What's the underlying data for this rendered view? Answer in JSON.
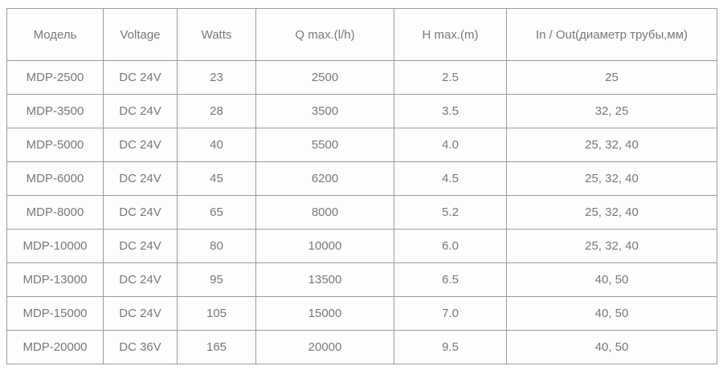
{
  "colors": {
    "border": "#9b9b9b",
    "text": "#76797c",
    "background": "#ffffff",
    "cell_background": "#fdfdfd"
  },
  "table": {
    "headers": {
      "model": "Модель",
      "voltage": "Voltage",
      "watts": "Watts",
      "qmax": "Q max.(l/h)",
      "hmax": "H max.(m)",
      "inout": "In / Out(диаметр трубы,мм)"
    },
    "rows": [
      [
        "MDP-2500",
        "DC 24V",
        "23",
        "2500",
        "2.5",
        "25"
      ],
      [
        "MDP-3500",
        "DC 24V",
        "28",
        "3500",
        "3.5",
        "32, 25"
      ],
      [
        "MDP-5000",
        "DC 24V",
        "40",
        "5500",
        "4.0",
        "25, 32, 40"
      ],
      [
        "MDP-6000",
        "DC 24V",
        "45",
        "6200",
        "4.5",
        "25, 32, 40"
      ],
      [
        "MDP-8000",
        "DC 24V",
        "65",
        "8000",
        "5.2",
        "25, 32, 40"
      ],
      [
        "MDP-10000",
        "DC 24V",
        "80",
        "10000",
        "6.0",
        "25, 32, 40"
      ],
      [
        "MDP-13000",
        "DC 24V",
        "95",
        "13500",
        "6.5",
        "40, 50"
      ],
      [
        "MDP-15000",
        "DC 24V",
        "105",
        "15000",
        "7.0",
        "40, 50"
      ],
      [
        "MDP-20000",
        "DC 36V",
        "165",
        "20000",
        "9.5",
        "40, 50"
      ]
    ]
  },
  "chart_data": {
    "type": "table",
    "title": "",
    "columns": [
      "Модель",
      "Voltage",
      "Watts",
      "Q max.(l/h)",
      "H max.(m)",
      "In / Out(диаметр трубы,мм)"
    ],
    "rows": [
      [
        "MDP-2500",
        "DC 24V",
        23,
        2500,
        2.5,
        "25"
      ],
      [
        "MDP-3500",
        "DC 24V",
        28,
        3500,
        3.5,
        "32, 25"
      ],
      [
        "MDP-5000",
        "DC 24V",
        40,
        5500,
        4.0,
        "25, 32, 40"
      ],
      [
        "MDP-6000",
        "DC 24V",
        45,
        6200,
        4.5,
        "25, 32, 40"
      ],
      [
        "MDP-8000",
        "DC 24V",
        65,
        8000,
        5.2,
        "25, 32, 40"
      ],
      [
        "MDP-10000",
        "DC 24V",
        80,
        10000,
        6.0,
        "25, 32, 40"
      ],
      [
        "MDP-13000",
        "DC 24V",
        95,
        13500,
        6.5,
        "40, 50"
      ],
      [
        "MDP-15000",
        "DC 24V",
        105,
        15000,
        7.0,
        "40, 50"
      ],
      [
        "MDP-20000",
        "DC 36V",
        165,
        20000,
        9.5,
        "40, 50"
      ]
    ],
    "layout_hints": {
      "grid": true,
      "header_row": true,
      "text_align": "center"
    }
  }
}
